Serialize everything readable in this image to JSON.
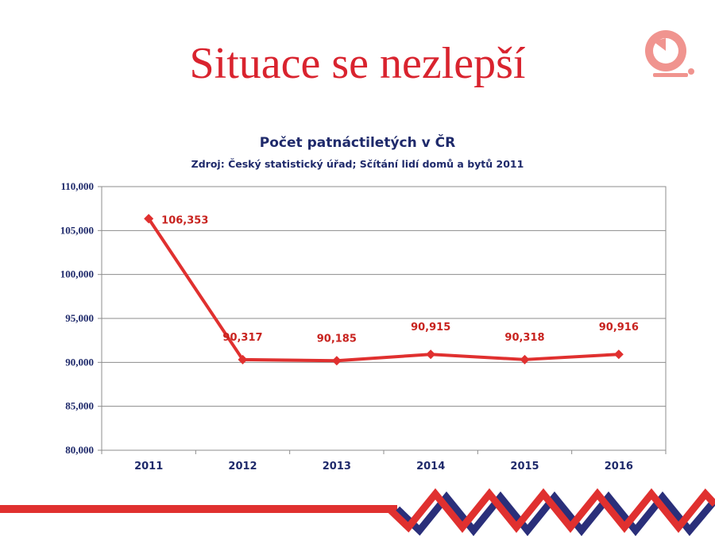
{
  "slide": {
    "title": "Situace se nezlepší"
  },
  "colors": {
    "accent_red": "#d9232e",
    "navy": "#1f2a6b",
    "logo_pink": "#f0948f"
  },
  "icons": {
    "logo": "clock-bell-icon"
  },
  "chart_data": {
    "type": "line",
    "title": "Počet patnáctiletých v ČR",
    "subtitle": "Zdroj: Český statistický úřad; Sčítání lidí domů a bytů 2011",
    "categories": [
      "2011",
      "2012",
      "2013",
      "2014",
      "2015",
      "2016"
    ],
    "series": [
      {
        "values": [
          106353,
          90317,
          90185,
          90915,
          90318,
          90916
        ],
        "data_labels": [
          "106,353",
          "90,317",
          "90,185",
          "90,915",
          "90,318",
          "90,916"
        ],
        "color": "#e0302f",
        "marker": "diamond"
      }
    ],
    "ylim": [
      80000,
      110000
    ],
    "y_ticks": [
      80000,
      85000,
      90000,
      95000,
      100000,
      105000,
      110000
    ],
    "y_tick_labels": [
      "80,000",
      "85,000",
      "90,000",
      "95,000",
      "100,000",
      "105,000",
      "110,000"
    ],
    "xlabel": "",
    "ylabel": "",
    "grid": true,
    "legend": "none"
  }
}
